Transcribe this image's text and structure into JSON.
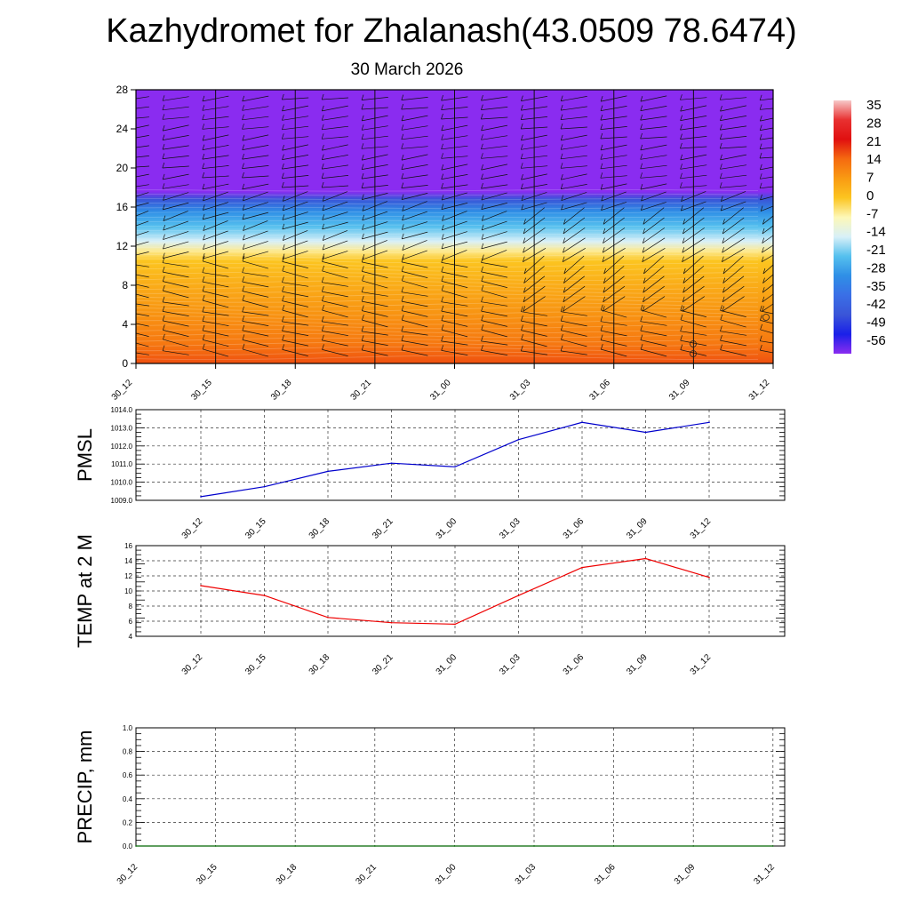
{
  "title": "Kazhydromet for Zhalanash(43.0509 78.6474)",
  "date": "30 March 2026",
  "time_labels": [
    "30_12",
    "30_15",
    "30_18",
    "30_21",
    "31_00",
    "31_03",
    "31_06",
    "31_09",
    "31_12"
  ],
  "colorbar": {
    "labels": [
      "35",
      "28",
      "21",
      "14",
      "7",
      "0",
      "-7",
      "-14",
      "-21",
      "-28",
      "-35",
      "-42",
      "-49",
      "-56"
    ],
    "stops": [
      {
        "value": 35,
        "color": "#f7c8c8"
      },
      {
        "value": 28,
        "color": "#e83030"
      },
      {
        "value": 21,
        "color": "#e01010"
      },
      {
        "value": 14,
        "color": "#f56a10"
      },
      {
        "value": 7,
        "color": "#f99a12"
      },
      {
        "value": 0,
        "color": "#fcc520"
      },
      {
        "value": -7,
        "color": "#fdf8b8"
      },
      {
        "value": -14,
        "color": "#d8f0f8"
      },
      {
        "value": -21,
        "color": "#55c0ee"
      },
      {
        "value": -28,
        "color": "#2f8fe6"
      },
      {
        "value": -35,
        "color": "#3a6fe6"
      },
      {
        "value": -42,
        "color": "#3a55d8"
      },
      {
        "value": -49,
        "color": "#1a20e8"
      },
      {
        "value": -56,
        "color": "#8a2cf0"
      }
    ]
  },
  "chart_data": [
    {
      "type": "heatmap",
      "title": "Kazhydromet for Zhalanash(43.0509 78.6474)",
      "subtitle": "30 March 2026",
      "variable": "temperature cross-section with wind barbs",
      "x": [
        "30_12",
        "30_15",
        "30_18",
        "30_21",
        "31_00",
        "31_03",
        "31_06",
        "31_09",
        "31_12"
      ],
      "ylim": [
        0,
        28
      ],
      "yticks": [
        "0",
        "4",
        "8",
        "12",
        "16",
        "20",
        "24",
        "28"
      ],
      "color_scale": [
        -56,
        35
      ],
      "profile": [
        {
          "height": 0,
          "value": 16
        },
        {
          "height": 2,
          "value": 12
        },
        {
          "height": 5,
          "value": 8
        },
        {
          "height": 8,
          "value": 4
        },
        {
          "height": 10.5,
          "value": 0
        },
        {
          "height": 11.5,
          "value": -5
        },
        {
          "height": 12.5,
          "value": -14
        },
        {
          "height": 14,
          "value": -21
        },
        {
          "height": 15.5,
          "value": -28
        },
        {
          "height": 16.8,
          "value": -42
        },
        {
          "height": 17.6,
          "value": -56
        },
        {
          "height": 28,
          "value": -56
        }
      ]
    },
    {
      "type": "line",
      "ylabel": "PMSL",
      "x": [
        "30_12",
        "30_15",
        "30_18",
        "30_21",
        "31_00",
        "31_03",
        "31_06",
        "31_09",
        "31_12"
      ],
      "values": [
        1009.2,
        1009.75,
        1010.6,
        1011.05,
        1010.85,
        1012.35,
        1013.3,
        1012.75,
        1013.3
      ],
      "ylim": [
        1009.0,
        1014.0
      ],
      "yticks": [
        "1009.0",
        "1010.0",
        "1011.0",
        "1012.0",
        "1013.0",
        "1014.0"
      ],
      "color": "#0000cc"
    },
    {
      "type": "line",
      "ylabel": "TEMP at 2 M",
      "x": [
        "30_12",
        "30_15",
        "30_18",
        "30_21",
        "31_00",
        "31_03",
        "31_06",
        "31_09",
        "31_12"
      ],
      "values": [
        10.7,
        9.4,
        6.5,
        5.8,
        5.6,
        9.4,
        13.1,
        14.3,
        11.8
      ],
      "ylim": [
        4,
        16
      ],
      "yticks": [
        "4",
        "6",
        "8",
        "10",
        "12",
        "14",
        "16"
      ],
      "color": "#ee0000"
    },
    {
      "type": "line",
      "ylabel": "PRECIP, mm",
      "x": [
        "30_12",
        "30_15",
        "30_18",
        "30_21",
        "31_00",
        "31_03",
        "31_06",
        "31_09",
        "31_12"
      ],
      "values": [
        0,
        0,
        0,
        0,
        0,
        0,
        0,
        0,
        0
      ],
      "ylim": [
        0.0,
        1.0
      ],
      "yticks": [
        "0.0",
        "0.2",
        "0.4",
        "0.6",
        "0.8",
        "1.0"
      ],
      "color": "#006600"
    }
  ]
}
